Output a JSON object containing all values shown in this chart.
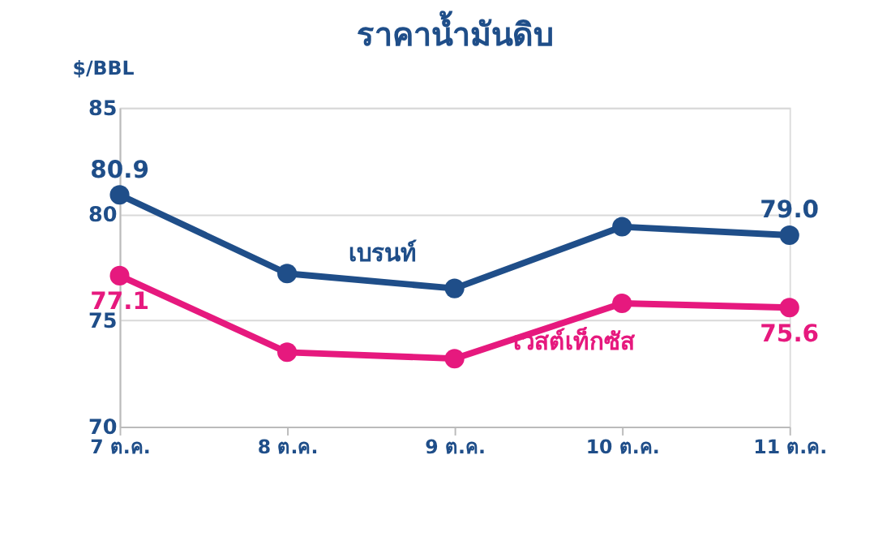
{
  "chart_data": {
    "type": "line",
    "title": "ราคาน้ำมันดิบ",
    "ylabel": "$/BBL",
    "categories": [
      "7 ต.ค.",
      "8 ต.ค.",
      "9 ต.ค.",
      "10 ต.ค.",
      "11 ต.ค."
    ],
    "series": [
      {
        "name": "เบรนท์",
        "color": "#1f4e89",
        "values": [
          80.9,
          77.2,
          76.5,
          79.4,
          79.0
        ],
        "value_labels": [
          "80.9",
          null,
          null,
          null,
          "79.0"
        ]
      },
      {
        "name": "เวสต์เท็กซัส",
        "color": "#e6197e",
        "values": [
          77.1,
          73.5,
          73.2,
          75.8,
          75.6
        ],
        "value_labels": [
          "77.1",
          null,
          null,
          null,
          "75.6"
        ]
      }
    ],
    "ylim": [
      70,
      85
    ],
    "yticks": [
      70,
      75,
      80,
      85
    ],
    "grid": "y",
    "legend": false,
    "marker": "circle",
    "line_style": "solid"
  }
}
